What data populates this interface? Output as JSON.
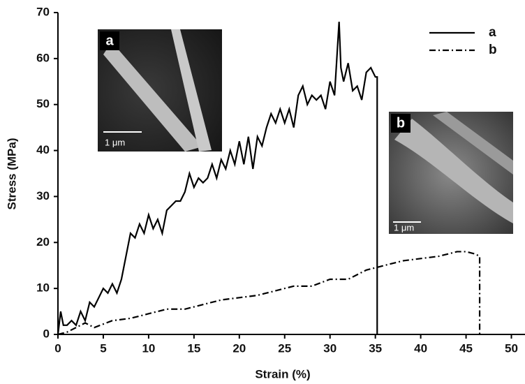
{
  "chart_data": {
    "type": "line",
    "x_label": "Strain (%)",
    "y_label": "Stress (MPa)",
    "xlim": [
      0,
      51.5
    ],
    "ylim": [
      0,
      70
    ],
    "xticks": [
      0,
      5,
      10,
      15,
      20,
      25,
      30,
      35,
      40,
      45,
      50
    ],
    "yticks": [
      0,
      10,
      20,
      30,
      40,
      50,
      60,
      70
    ],
    "legend": "upper right",
    "series": [
      {
        "name": "a",
        "color": "#000000",
        "style": "solid",
        "x": [
          0,
          0.3,
          0.6,
          1,
          1.5,
          2,
          2.5,
          3,
          3.5,
          4,
          4.5,
          5,
          5.5,
          6,
          6.5,
          7,
          7.5,
          8,
          8.5,
          9,
          9.5,
          10,
          10.5,
          11,
          11.5,
          12,
          12.5,
          13,
          13.5,
          14,
          14.5,
          15,
          15.5,
          16,
          16.5,
          17,
          17.5,
          18,
          18.5,
          19,
          19.5,
          20,
          20.5,
          21,
          21.5,
          22,
          22.5,
          23,
          23.5,
          24,
          24.5,
          25,
          25.5,
          26,
          26.5,
          27,
          27.5,
          28,
          28.5,
          29,
          29.5,
          30,
          30.5,
          31,
          31.2,
          31.5,
          32,
          32.5,
          33,
          33.5,
          34,
          34.5,
          35,
          35.2,
          35.2
        ],
        "values": [
          0,
          5,
          2,
          2,
          3,
          2,
          5,
          3,
          7,
          6,
          8,
          10,
          9,
          11,
          9,
          12,
          17,
          22,
          21,
          24,
          22,
          26,
          23,
          25,
          22,
          27,
          28,
          29,
          29,
          31,
          35,
          32,
          34,
          33,
          34,
          37,
          34,
          38,
          36,
          40,
          37,
          42,
          37,
          43,
          36,
          43,
          41,
          45,
          48,
          46,
          49,
          46,
          49,
          45,
          52,
          54,
          50,
          52,
          51,
          52,
          49,
          55,
          52,
          68,
          58,
          55,
          59,
          53,
          54,
          51,
          57,
          58,
          56,
          56,
          0
        ]
      },
      {
        "name": "b",
        "color": "#000000",
        "style": "dashdot",
        "x": [
          0,
          1,
          2,
          3,
          4,
          6,
          8,
          10,
          12,
          14,
          16,
          18,
          20,
          22,
          24,
          26,
          28,
          30,
          32,
          34,
          36,
          38,
          40,
          42,
          44,
          45,
          46,
          46.5,
          46.5
        ],
        "values": [
          0,
          0.5,
          1.5,
          2.5,
          1.5,
          3,
          3.5,
          4.5,
          5.5,
          5.5,
          6.5,
          7.5,
          8,
          8.5,
          9.5,
          10.5,
          10.5,
          12,
          12,
          14,
          15,
          16,
          16.5,
          17,
          18,
          18,
          17.5,
          17,
          0
        ]
      }
    ],
    "insets": [
      {
        "label": "a",
        "scale_bar": "1 μm"
      },
      {
        "label": "b",
        "scale_bar": "1 μm"
      }
    ]
  }
}
